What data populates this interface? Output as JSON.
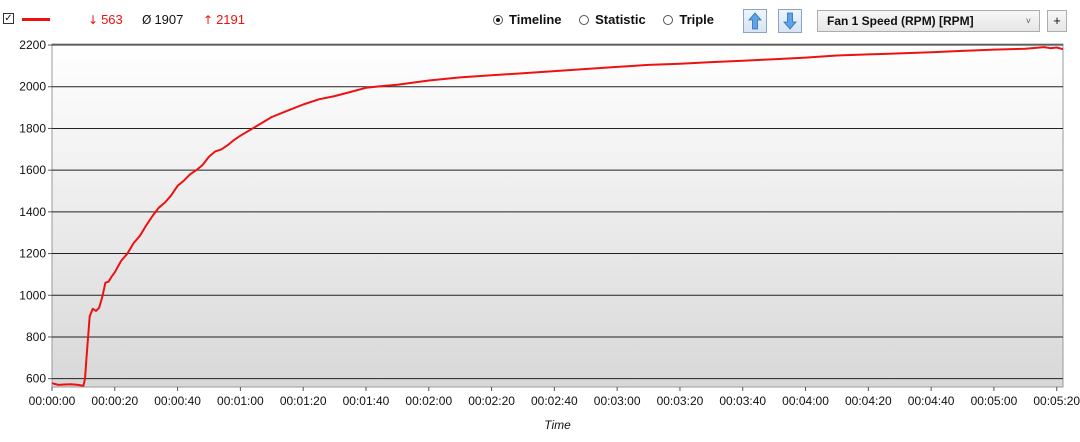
{
  "legend": {
    "checked": true,
    "series_color": "#ee1111",
    "min": "563",
    "avg": "1907",
    "max": "2191",
    "min_symbol": "↓",
    "avg_symbol": "Ø",
    "max_symbol": "↑"
  },
  "view_modes": [
    {
      "label": "Timeline",
      "selected": true
    },
    {
      "label": "Statistic",
      "selected": false
    },
    {
      "label": "Triple",
      "selected": false
    }
  ],
  "sensor_select": {
    "value": "Fan 1 Speed (RPM) [RPM]"
  },
  "add_button": "+",
  "chart_data": {
    "type": "line",
    "xlabel": "Time",
    "ylabel": "",
    "x_unit": "seconds",
    "xlim": [
      0,
      322
    ],
    "ylim": [
      560,
      2205
    ],
    "y_ticks": [
      600,
      800,
      1000,
      1200,
      1400,
      1600,
      1800,
      2000,
      2200
    ],
    "x_tick_labels": [
      "00:00:00",
      "00:00:20",
      "00:00:40",
      "00:01:00",
      "00:01:20",
      "00:01:40",
      "00:02:00",
      "00:02:20",
      "00:02:40",
      "00:03:00",
      "00:03:20",
      "00:03:40",
      "00:04:00",
      "00:04:20",
      "00:04:40",
      "00:05:00",
      "00:05:20"
    ],
    "grid": true,
    "series": [
      {
        "color": "#ee1111",
        "x": [
          0,
          2,
          4,
          6,
          8,
          10,
          10.5,
          11,
          12,
          13,
          14,
          15,
          16,
          17,
          18,
          19,
          20,
          22,
          24,
          26,
          28,
          30,
          32,
          34,
          36,
          38,
          40,
          42,
          44,
          46,
          48,
          50,
          52,
          54,
          56,
          58,
          60,
          65,
          70,
          75,
          80,
          85,
          90,
          95,
          100,
          105,
          110,
          115,
          120,
          130,
          140,
          150,
          160,
          170,
          180,
          190,
          200,
          210,
          220,
          230,
          240,
          250,
          260,
          270,
          280,
          290,
          300,
          310,
          316,
          318,
          320,
          322
        ],
        "y": [
          578,
          570,
          572,
          573,
          571,
          566,
          600,
          700,
          900,
          935,
          925,
          940,
          990,
          1060,
          1065,
          1090,
          1110,
          1165,
          1200,
          1250,
          1285,
          1335,
          1380,
          1420,
          1445,
          1480,
          1525,
          1550,
          1580,
          1600,
          1625,
          1665,
          1690,
          1700,
          1720,
          1745,
          1765,
          1810,
          1855,
          1885,
          1915,
          1940,
          1955,
          1975,
          1995,
          2003,
          2010,
          2020,
          2030,
          2045,
          2055,
          2065,
          2075,
          2085,
          2095,
          2105,
          2110,
          2118,
          2125,
          2132,
          2140,
          2150,
          2155,
          2160,
          2165,
          2172,
          2178,
          2182,
          2190,
          2185,
          2188,
          2180
        ]
      }
    ]
  }
}
